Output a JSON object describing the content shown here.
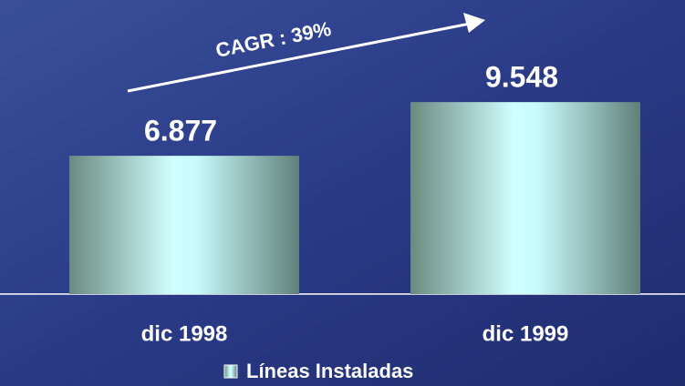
{
  "chart_data": {
    "type": "bar",
    "annotation": "CAGR : 39%",
    "categories": [
      "dic 1998",
      "dic 1999"
    ],
    "series": [
      {
        "name": "Líneas Instaladas",
        "color": "#c8fcfc",
        "values": [
          6877,
          9548
        ],
        "value_labels": [
          "6.877",
          "9.548"
        ]
      }
    ],
    "ylim": [
      0,
      12000
    ]
  }
}
